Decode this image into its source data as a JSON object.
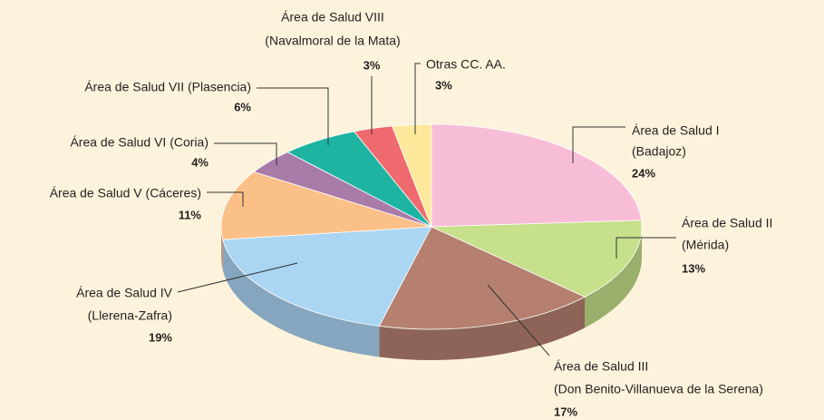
{
  "chart_data": {
    "type": "pie3d",
    "categories": [
      [
        "Área de Salud I",
        "(Badajoz)"
      ],
      [
        "Área de Salud II",
        "(Mérida)"
      ],
      [
        "Área de Salud III",
        "(Don Benito-Villanueva de la Serena)"
      ],
      [
        "Área de Salud IV",
        "(Llerena-Zafra)"
      ],
      [
        "Área de Salud  V (Cáceres)"
      ],
      [
        "Área de Salud VI (Coria)"
      ],
      [
        "Área de Salud VII (Plasencia)"
      ],
      [
        "Área de Salud  VIII",
        "(Navalmoral de la Mata)"
      ],
      [
        "Otras CC. AA."
      ]
    ],
    "values": [
      24,
      13,
      17,
      19,
      11,
      4,
      6,
      3,
      3
    ],
    "value_labels": [
      "24%",
      "13%",
      "17%",
      "19%",
      "11%",
      "4%",
      "6%",
      "3%",
      "3%"
    ],
    "colors": [
      "#f7bdd7",
      "#c6e08b",
      "#b5806f",
      "#aad5f3",
      "#fbc088",
      "#a97ba9",
      "#1fb4a2",
      "#ee6a6e",
      "#fde89b"
    ]
  }
}
